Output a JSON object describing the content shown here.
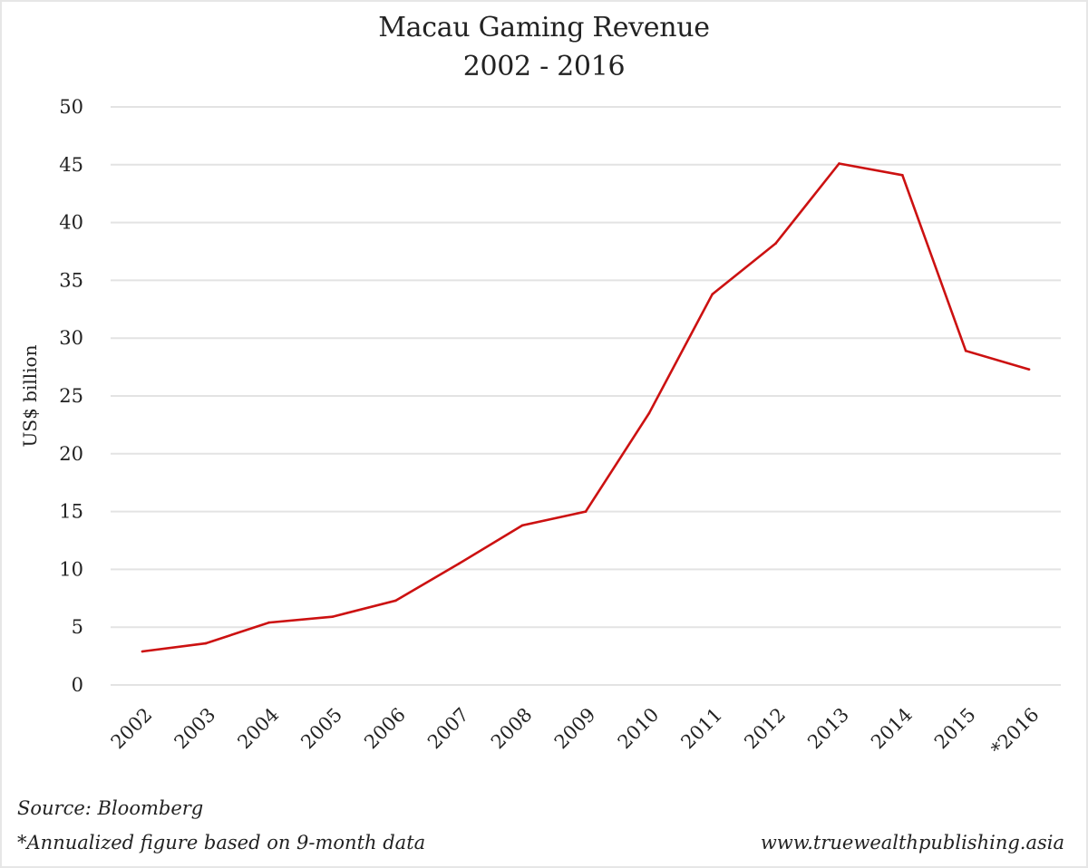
{
  "chart_data": {
    "type": "line",
    "title": "Macau Gaming Revenue",
    "subtitle": "2002 - 2016",
    "xlabel": "",
    "ylabel": "US$ billion",
    "categories": [
      "2002",
      "2003",
      "2004",
      "2005",
      "2006",
      "2007",
      "2008",
      "2009",
      "2010",
      "2011",
      "2012",
      "2013",
      "2014",
      "2015",
      "*2016"
    ],
    "series": [
      {
        "name": "Macau Gaming Revenue",
        "color": "#cc1111",
        "values": [
          2.9,
          3.6,
          5.4,
          5.9,
          7.3,
          10.5,
          13.8,
          15.0,
          23.5,
          33.8,
          38.2,
          45.1,
          44.1,
          28.9,
          27.3
        ]
      }
    ],
    "ylim": [
      0,
      50
    ],
    "yticks": [
      0,
      5,
      10,
      15,
      20,
      25,
      30,
      35,
      40,
      45,
      50
    ],
    "grid": true,
    "gridline_color": "#e3e3e3",
    "legend": "none",
    "source": "Source: Bloomberg",
    "footnote": "*Annualized figure based on 9-month data",
    "website": "www.truewealthpublishing.asia"
  }
}
